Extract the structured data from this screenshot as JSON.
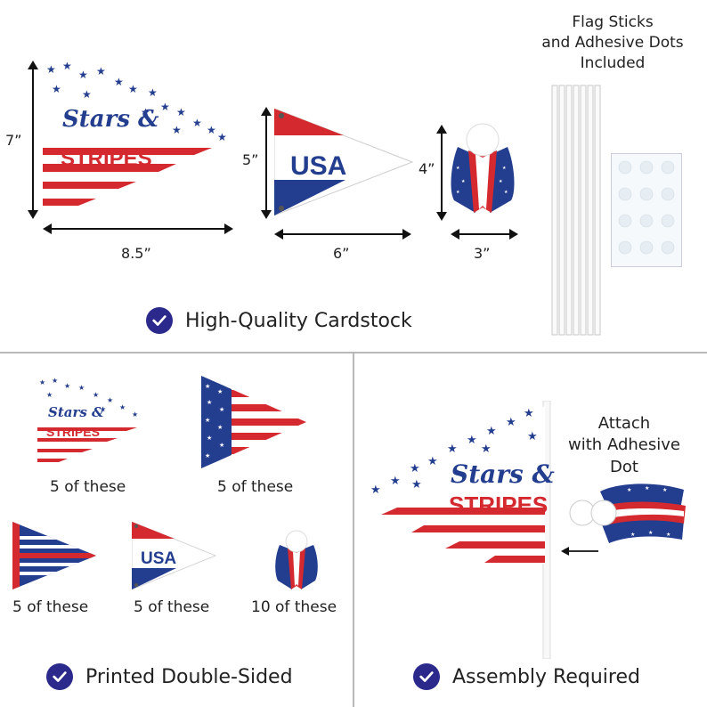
{
  "dimensions": {
    "large_pennant_height": "7”",
    "large_pennant_width": "8.5”",
    "usa_pennant_height": "5”",
    "usa_pennant_width": "6”",
    "ribbon_height": "4”",
    "ribbon_width": "3”"
  },
  "pennant_text": {
    "stars_script": "Stars &",
    "stripes": "STRIPES",
    "usa": "USA"
  },
  "included_note": [
    "Flag Sticks",
    "and Adhesive Dots",
    "Included"
  ],
  "features": {
    "cardstock": "High-Quality Cardstock",
    "double_sided": "Printed Double-Sided",
    "assembly": "Assembly Required"
  },
  "counts": {
    "stars_stripes": "5 of these",
    "flag": "5 of these",
    "striped": "5 of these",
    "usa": "5 of these",
    "ribbon": "10 of these"
  },
  "attach_note": [
    "Attach",
    "with Adhesive",
    "Dot"
  ],
  "colors": {
    "red": "#d42a2f",
    "blue": "#233d8f",
    "navy": "#2b2a8c"
  }
}
